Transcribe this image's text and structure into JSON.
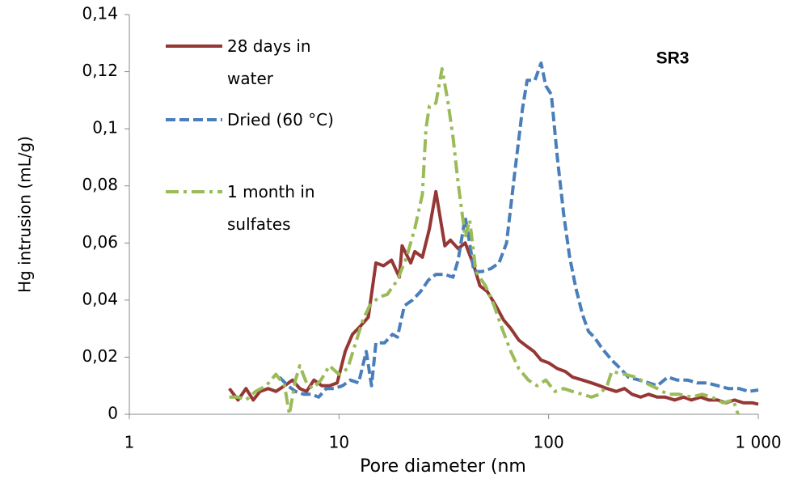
{
  "chart_data": {
    "type": "line",
    "x_label": "Pore diameter (nm",
    "y_label": "Hg intrusion (mL/g)",
    "annotation": "SR3",
    "annotation_color": "#e8211c",
    "x_scale": "log",
    "xlim": [
      1,
      1000
    ],
    "xticks": [
      1,
      10,
      100,
      {
        "value": 1000,
        "label": "1 000"
      }
    ],
    "ylim": [
      0,
      0.14
    ],
    "yticks": [
      0,
      {
        "value": 0.02,
        "label": "0,02"
      },
      {
        "value": 0.04,
        "label": "0,04"
      },
      {
        "value": 0.06,
        "label": "0,06"
      },
      {
        "value": 0.08,
        "label": "0,08"
      },
      {
        "value": 0.1,
        "label": "0,1"
      },
      {
        "value": 0.12,
        "label": "0,12"
      },
      {
        "value": 0.14,
        "label": "0,14"
      }
    ],
    "grid": false,
    "series": [
      {
        "name": "28 days in water",
        "color": "#953735",
        "style": "solid",
        "x": [
          3.0,
          3.3,
          3.6,
          3.9,
          4.2,
          4.6,
          5.0,
          5.5,
          6.0,
          6.5,
          7.0,
          7.6,
          8.3,
          9.0,
          9.8,
          10.7,
          11.6,
          12.7,
          13.8,
          15,
          16.3,
          17.8,
          19.4,
          20,
          22,
          23,
          25,
          27,
          29,
          32,
          34,
          37,
          40,
          44,
          47,
          51,
          56,
          61,
          66,
          72,
          78,
          85,
          92,
          100,
          110,
          120,
          130,
          145,
          160,
          175,
          190,
          210,
          230,
          250,
          275,
          300,
          330,
          360,
          400,
          440,
          480,
          530,
          580,
          640,
          700,
          770,
          850,
          940,
          1000
        ],
        "values": [
          0.009,
          0.005,
          0.009,
          0.005,
          0.008,
          0.009,
          0.008,
          0.01,
          0.012,
          0.009,
          0.008,
          0.012,
          0.01,
          0.01,
          0.011,
          0.022,
          0.028,
          0.031,
          0.034,
          0.053,
          0.052,
          0.054,
          0.048,
          0.059,
          0.053,
          0.057,
          0.055,
          0.065,
          0.078,
          0.059,
          0.061,
          0.058,
          0.06,
          0.052,
          0.045,
          0.043,
          0.038,
          0.033,
          0.03,
          0.026,
          0.024,
          0.022,
          0.019,
          0.018,
          0.016,
          0.015,
          0.013,
          0.012,
          0.011,
          0.01,
          0.009,
          0.008,
          0.009,
          0.007,
          0.006,
          0.007,
          0.006,
          0.006,
          0.005,
          0.006,
          0.005,
          0.006,
          0.005,
          0.005,
          0.004,
          0.005,
          0.004,
          0.004,
          0.0035
        ]
      },
      {
        "name": "Dried (60 °C)",
        "color": "#4a7ebb",
        "style": "dashed",
        "x": [
          5.2,
          5.7,
          6.2,
          6.8,
          7.4,
          8.0,
          8.7,
          9.5,
          10.4,
          11.3,
          12.4,
          13.5,
          14.3,
          15,
          16.5,
          18,
          19,
          20.5,
          22.4,
          24.5,
          26.7,
          29,
          32,
          35,
          37,
          40,
          42,
          44,
          48,
          53,
          58,
          63,
          69,
          75,
          79,
          86,
          92,
          97,
          103,
          110,
          118,
          126,
          135,
          145,
          155,
          165,
          180,
          200,
          220,
          240,
          270,
          300,
          330,
          370,
          410,
          460,
          510,
          570,
          640,
          720,
          810,
          900,
          1000
        ],
        "values": [
          0.013,
          0.01,
          0.008,
          0.007,
          0.007,
          0.006,
          0.009,
          0.009,
          0.01,
          0.012,
          0.011,
          0.022,
          0.01,
          0.025,
          0.025,
          0.028,
          0.027,
          0.038,
          0.04,
          0.043,
          0.047,
          0.049,
          0.049,
          0.048,
          0.054,
          0.069,
          0.06,
          0.05,
          0.05,
          0.051,
          0.053,
          0.06,
          0.085,
          0.107,
          0.117,
          0.117,
          0.123,
          0.115,
          0.112,
          0.09,
          0.07,
          0.055,
          0.044,
          0.035,
          0.029,
          0.027,
          0.023,
          0.019,
          0.016,
          0.013,
          0.012,
          0.011,
          0.01,
          0.013,
          0.012,
          0.012,
          0.011,
          0.011,
          0.01,
          0.009,
          0.009,
          0.008,
          0.0085
        ]
      },
      {
        "name": "1 month in sulfates",
        "color": "#9bbb59",
        "style": "dashdot",
        "x": [
          3.0,
          3.3,
          3.6,
          4.0,
          4.5,
          5.0,
          5.5,
          5.8,
          6.2,
          6.5,
          7.0,
          7.5,
          8.2,
          9.0,
          10,
          11,
          12,
          13,
          14,
          15.5,
          17,
          19,
          21,
          23,
          25,
          26,
          27,
          29,
          31,
          33,
          35,
          37,
          40,
          42,
          45,
          50,
          55,
          60,
          66,
          72,
          80,
          88,
          97,
          107,
          118,
          130,
          145,
          160,
          175,
          190,
          200,
          230,
          260,
          290,
          330,
          370,
          420,
          480,
          540,
          600,
          680,
          760,
          800
        ],
        "values": [
          0.006,
          0.006,
          0.005,
          0.008,
          0.01,
          0.014,
          0.01,
          0.0,
          0.012,
          0.017,
          0.011,
          0.009,
          0.012,
          0.017,
          0.014,
          0.016,
          0.025,
          0.033,
          0.038,
          0.041,
          0.042,
          0.047,
          0.055,
          0.065,
          0.077,
          0.1,
          0.108,
          0.109,
          0.121,
          0.11,
          0.097,
          0.081,
          0.062,
          0.068,
          0.05,
          0.045,
          0.038,
          0.03,
          0.022,
          0.016,
          0.012,
          0.01,
          0.012,
          0.008,
          0.009,
          0.008,
          0.007,
          0.006,
          0.007,
          0.01,
          0.015,
          0.014,
          0.013,
          0.011,
          0.009,
          0.007,
          0.007,
          0.006,
          0.007,
          0.006,
          0.004,
          0.005,
          0.0
        ]
      }
    ]
  }
}
